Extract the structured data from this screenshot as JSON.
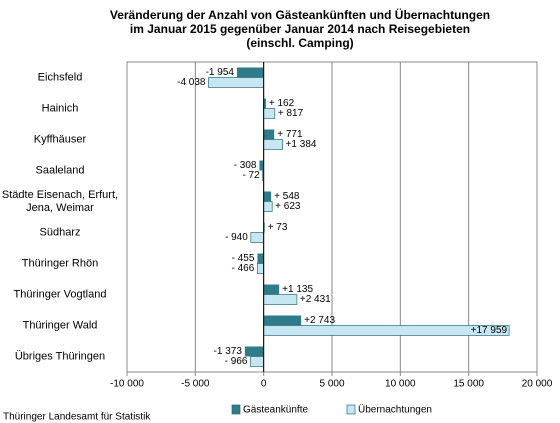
{
  "chart_data": {
    "type": "hbar",
    "title": [
      "Veränderung der Anzahl von Gästeankünften und Übernachtungen",
      "im Januar 2015 gegenüber Januar 2014 nach Reisegebieten",
      "(einschl. Camping)"
    ],
    "categories": [
      "Eichsfeld",
      "Hainich",
      "Kyffhäuser",
      "Saaleland",
      "Städte Eisenach, Erfurt, Jena, Weimar",
      "Südharz",
      "Thüringer Rhön",
      "Thüringer Vogtland",
      "Thüringer Wald",
      "Übriges Thüringen"
    ],
    "series": [
      {
        "name": "Gästeankünfte",
        "color": "#2e7b8a",
        "values": [
          -1954,
          162,
          771,
          -308,
          548,
          73,
          -455,
          1135,
          2743,
          -1373
        ],
        "value_labels": [
          "-1 954",
          "+ 162",
          "+ 771",
          "- 308",
          "+ 548",
          "+ 73",
          "- 455",
          "+1 135",
          "+2 743",
          "-1 373"
        ]
      },
      {
        "name": "Übernachtungen",
        "color": "#c6e7f1",
        "values": [
          -4038,
          817,
          1384,
          -72,
          623,
          -940,
          -466,
          2431,
          17959,
          -966
        ],
        "value_labels": [
          "-4 038",
          "+ 817",
          "+1 384",
          "- 72",
          "+ 623",
          "- 940",
          "- 466",
          "+2 431",
          "+17 959",
          "- 966"
        ]
      }
    ],
    "xlim": [
      -10000,
      20000
    ],
    "xticks": [
      {
        "value": -10000,
        "label": "-10 000"
      },
      {
        "value": -5000,
        "label": "-5 000"
      },
      0,
      {
        "value": 5000,
        "label": "5 000"
      },
      {
        "value": 10000,
        "label": "10 000"
      },
      {
        "value": 15000,
        "label": "15 000"
      },
      {
        "value": 20000,
        "label": "20 000"
      }
    ],
    "grid": true,
    "source": "Thüringer Landesamt für Statistik"
  }
}
